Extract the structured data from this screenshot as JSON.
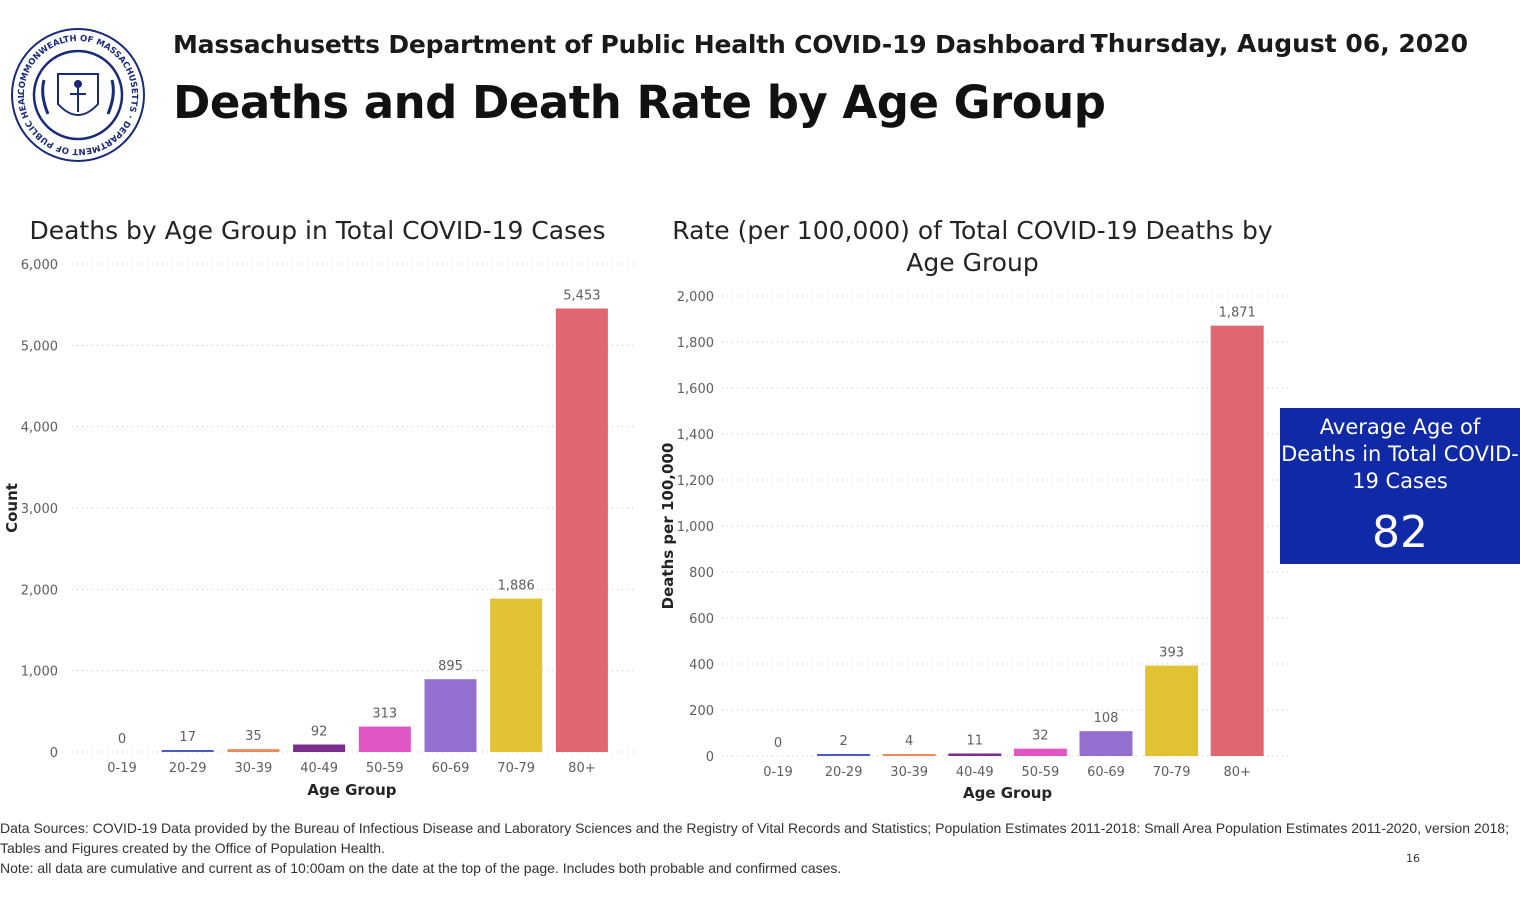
{
  "header": {
    "subtitle": "Massachusetts Department of Public Health COVID-19 Dashboard -",
    "date": "Thursday, August 06, 2020",
    "title": "Deaths and Death Rate by Age Group",
    "seal_text": "COMMONWEALTH OF MASSACHUSETTS · DEPARTMENT OF PUBLIC HEALTH"
  },
  "chart_data": [
    {
      "type": "bar",
      "title": "Deaths by Age Group in Total COVID-19 Cases",
      "xlabel": "Age Group",
      "ylabel": "Count",
      "ylim": [
        0,
        6000
      ],
      "yticks": [
        "0",
        "1,000",
        "2,000",
        "3,000",
        "4,000",
        "5,000",
        "6,000"
      ],
      "categories": [
        "0-19",
        "20-29",
        "30-39",
        "40-49",
        "50-59",
        "60-69",
        "70-79",
        "80+"
      ],
      "values": [
        0,
        17,
        35,
        92,
        313,
        895,
        1886,
        5453
      ],
      "value_labels": [
        "0",
        "17",
        "35",
        "92",
        "313",
        "895",
        "1,886",
        "5,453"
      ],
      "colors": [
        "#118dff",
        "#4a5cc4",
        "#e88a5c",
        "#7b2d8e",
        "#e056c4",
        "#9370d0",
        "#e1c233",
        "#e06671"
      ],
      "grid": true
    },
    {
      "type": "bar",
      "title": "Rate (per 100,000) of Total COVID-19 Deaths by Age Group",
      "xlabel": "Age Group",
      "ylabel": "Deaths per 100,000",
      "ylim": [
        0,
        2000
      ],
      "yticks": [
        "0",
        "200",
        "400",
        "600",
        "800",
        "1,000",
        "1,200",
        "1,400",
        "1,600",
        "1,800",
        "2,000"
      ],
      "categories": [
        "0-19",
        "20-29",
        "30-39",
        "40-49",
        "50-59",
        "60-69",
        "70-79",
        "80+"
      ],
      "values": [
        0,
        2,
        4,
        11,
        32,
        108,
        393,
        1871
      ],
      "value_labels": [
        "0",
        "2",
        "4",
        "11",
        "32",
        "108",
        "393",
        "1,871"
      ],
      "colors": [
        "#118dff",
        "#4a5cc4",
        "#e88a5c",
        "#7b2d8e",
        "#e056c4",
        "#9370d0",
        "#e1c233",
        "#e06671"
      ],
      "grid": true
    }
  ],
  "kpi": {
    "label": "Average Age of Deaths in Total COVID-19 Cases",
    "value": "82",
    "background": "#1029a6"
  },
  "footer": {
    "sources": "Data Sources: COVID-19 Data provided by the Bureau of Infectious Disease and Laboratory Sciences and the Registry of Vital Records and Statistics; Population Estimates 2011-2018: Small Area Population Estimates 2011-2020, version 2018; Tables and Figures created by the Office of Population Health.",
    "note": "Note: all data are cumulative and current as of 10:00am on the date at the top of the page. Includes both probable and confirmed cases.",
    "page_number": "16"
  }
}
